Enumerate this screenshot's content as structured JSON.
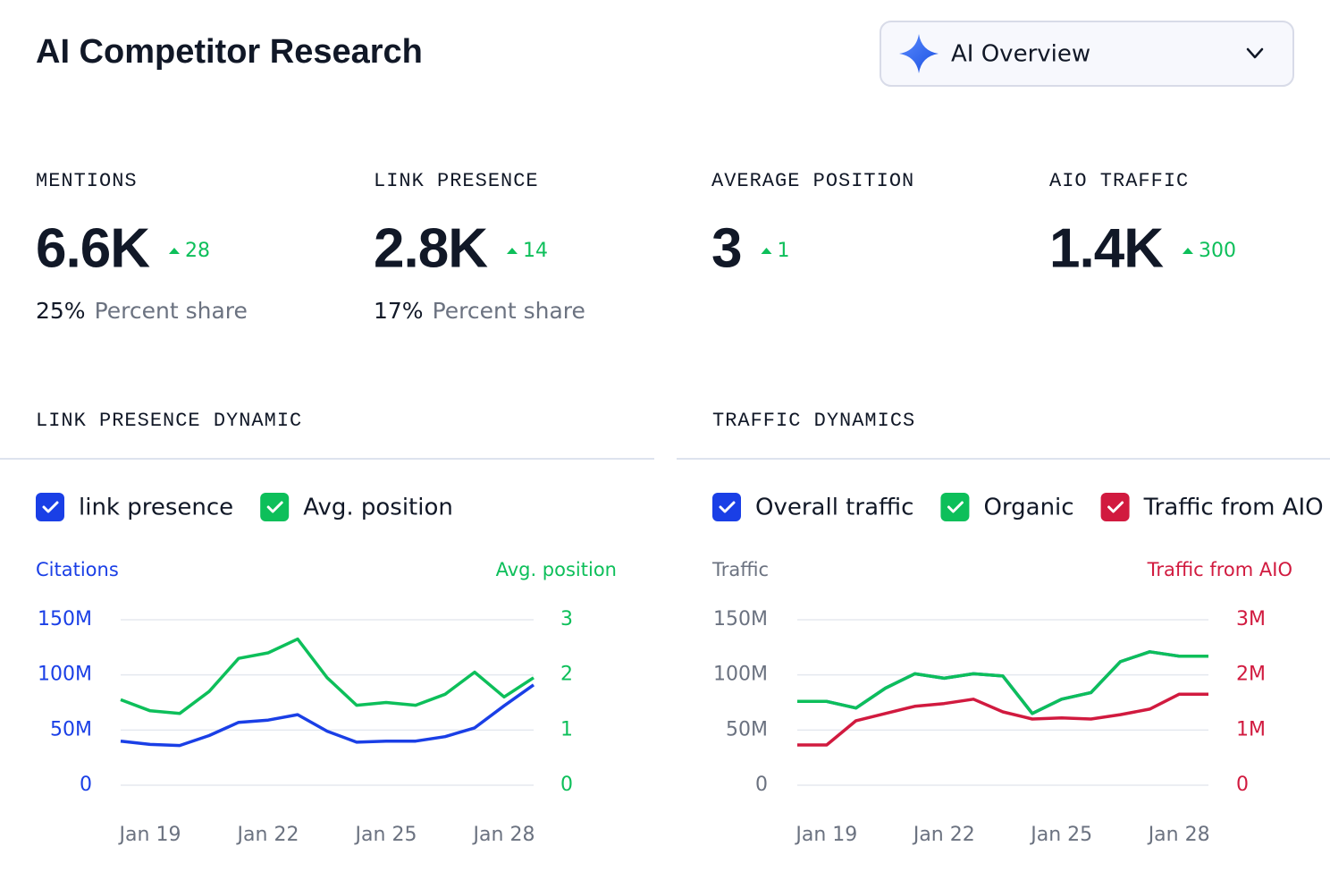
{
  "header": {
    "title": "AI Competitor Research",
    "dropdown": "AI Overview"
  },
  "metrics": [
    {
      "label": "MENTIONS",
      "value": "6.6K",
      "change": 28,
      "share": "25%",
      "share_label": "Percent share"
    },
    {
      "label": "LINK PRESENCE",
      "value": "2.8K",
      "change": 14,
      "share": "17%",
      "share_label": "Percent share"
    },
    {
      "label": "AVERAGE POSITION",
      "value": "3",
      "change": 1
    },
    {
      "label": "AIO TRAFFIC",
      "value": "1.4K",
      "change": 300
    }
  ],
  "chart_data": [
    {
      "type": "line",
      "title": "LINK PRESENCE DYNAMIC",
      "categories": [
        null,
        "Jan 19",
        null,
        null,
        null,
        "Jan 22",
        null,
        null,
        null,
        "Jan 25",
        null,
        null,
        null,
        "Jan 28",
        null
      ],
      "y_label": "Citations",
      "y_color": "#1a3fe6",
      "y2_label": "Avg. position",
      "y2_color": "#0dbf5a",
      "ylim": [
        0,
        150000000
      ],
      "yticks": [
        0,
        {
          "value": 50000000,
          "label": "50M"
        },
        {
          "value": 100000000,
          "label": "100M"
        },
        {
          "value": 150000000,
          "label": "150M"
        }
      ],
      "y2lim": [
        0,
        3
      ],
      "y2ticks": [
        0,
        1,
        2,
        3
      ],
      "grid": true,
      "series": [
        {
          "name": "link presence",
          "color": "#1a3fe6",
          "values": [
            40000000,
            37000000,
            36000000,
            45000000,
            57000000,
            59000000,
            64000000,
            49000000,
            39000000,
            40000000,
            40000000,
            44000000,
            52000000,
            72000000,
            91000000
          ]
        },
        {
          "name": "Avg. position",
          "color": "#0dbf5a",
          "axis": "y2",
          "values": [
            1.55,
            1.35,
            1.3,
            1.7,
            2.3,
            2.4,
            2.65,
            1.95,
            1.45,
            1.5,
            1.45,
            1.65,
            2.05,
            1.6,
            1.95
          ]
        }
      ]
    },
    {
      "type": "line",
      "title": "TRAFFIC DYNAMICS",
      "categories": [
        null,
        "Jan 19",
        null,
        null,
        null,
        "Jan 22",
        null,
        null,
        null,
        "Jan 25",
        null,
        null,
        null,
        "Jan 28",
        null
      ],
      "y_label": "Traffic",
      "y_color": "#6b7280",
      "y2_label": "Traffic from AIO",
      "y2_color": "#d11a3f",
      "ylim": [
        0,
        150000000
      ],
      "yticks": [
        0,
        {
          "value": 50000000,
          "label": "50M"
        },
        {
          "value": 100000000,
          "label": "100M"
        },
        {
          "value": 150000000,
          "label": "150M"
        }
      ],
      "y2lim": [
        0,
        3000000
      ],
      "y2ticks": [
        0,
        {
          "value": 1000000,
          "label": "1M"
        },
        {
          "value": 2000000,
          "label": "2M"
        },
        {
          "value": 3000000,
          "label": "3M"
        }
      ],
      "grid": true,
      "series": [
        {
          "name": "Overall traffic",
          "color": "#1a3fe6",
          "values": [
            76000000,
            76000000,
            70000000,
            88000000,
            101000000,
            97000000,
            101000000,
            99000000,
            65000000,
            78000000,
            84000000,
            112000000,
            121000000,
            117000000,
            117000000
          ]
        },
        {
          "name": "Organic",
          "color": "#0dbf5a",
          "values": [
            76000000,
            76000000,
            70000000,
            88000000,
            101000000,
            97000000,
            101000000,
            99000000,
            65000000,
            78000000,
            84000000,
            112000000,
            121000000,
            117000000,
            117000000
          ]
        },
        {
          "name": "Traffic from AIO",
          "color": "#d11a3f",
          "axis": "y2",
          "values": [
            730000,
            730000,
            1170000,
            1300000,
            1430000,
            1480000,
            1560000,
            1330000,
            1200000,
            1220000,
            1200000,
            1280000,
            1380000,
            1650000,
            1650000
          ]
        }
      ]
    }
  ]
}
